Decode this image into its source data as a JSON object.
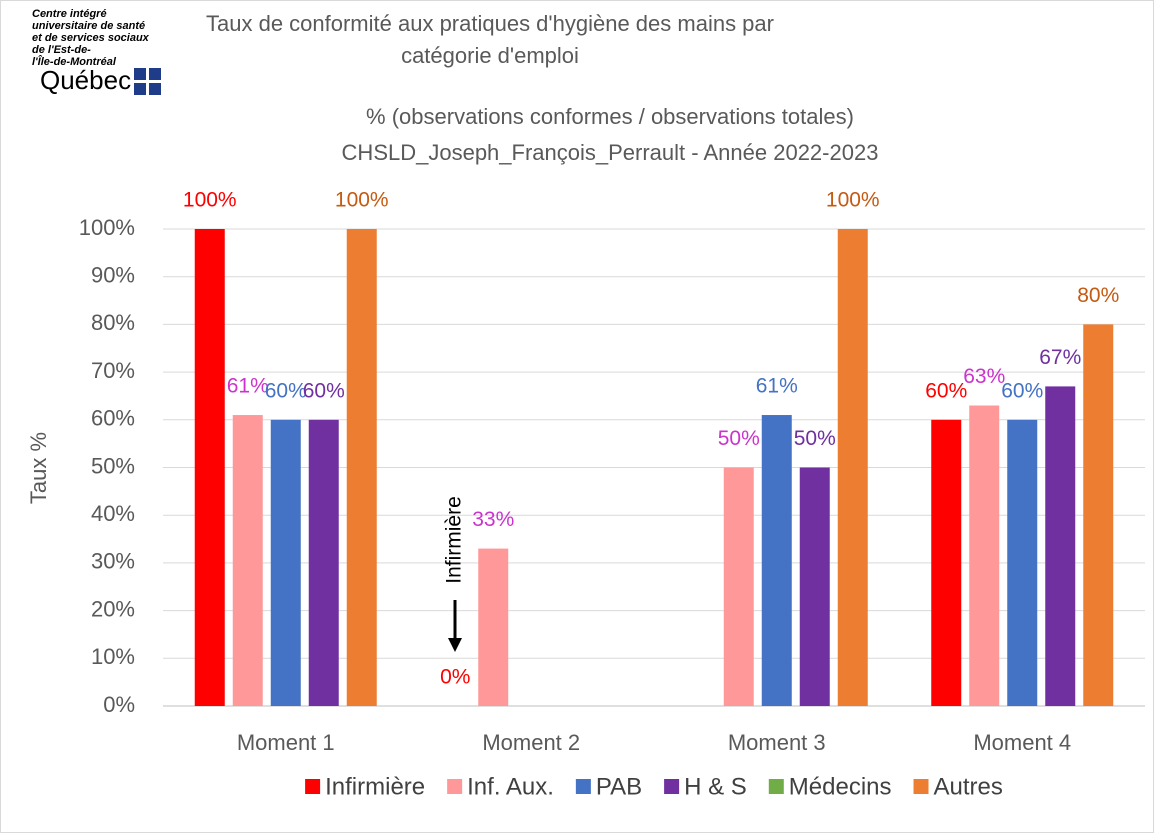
{
  "logo": {
    "lines": [
      "Centre intégré",
      "universitaire de santé",
      "et de services sociaux",
      "de l'Est-de-",
      "l'Île-de-Montréal"
    ],
    "brand": "Québec"
  },
  "chart_data": {
    "type": "bar",
    "title": "Taux de conformité aux pratiques d'hygiène des mains par catégorie d'emploi",
    "subtitle": [
      "% (observations conformes / observations totales)",
      "CHSLD_Joseph_François_Perrault - Année 2022-2023"
    ],
    "y_label": "Taux %",
    "annotation": "Infirmière",
    "categories": [
      "Moment 1",
      "Moment 2",
      "Moment 3",
      "Moment 4"
    ],
    "series": [
      {
        "name": "Infirmière",
        "color": "#ff0000",
        "label_color": "#ff0000",
        "values": [
          100,
          0,
          null,
          60
        ],
        "value_labels": [
          "100%",
          "0%",
          null,
          "60%"
        ]
      },
      {
        "name": "Inf. Aux.",
        "color": "#ff9999",
        "label_color": "#cc33cc",
        "values": [
          61,
          33,
          50,
          63
        ],
        "value_labels": [
          "61%",
          "33%",
          "50%",
          "63%"
        ]
      },
      {
        "name": "PAB",
        "color": "#4472c4",
        "label_color": "#4472c4",
        "values": [
          60,
          null,
          61,
          60
        ],
        "value_labels": [
          "60%",
          null,
          "61%",
          "60%"
        ]
      },
      {
        "name": "H & S",
        "color": "#7030a0",
        "label_color": "#7030a0",
        "values": [
          60,
          null,
          50,
          67
        ],
        "value_labels": [
          "60%",
          null,
          "50%",
          "67%"
        ]
      },
      {
        "name": "Médecins",
        "color": "#70ad47",
        "label_color": "#70ad47",
        "values": [
          null,
          null,
          null,
          null
        ]
      },
      {
        "name": "Autres",
        "color": "#ed7d31",
        "label_color": "#c55a11",
        "values": [
          100,
          null,
          100,
          80
        ],
        "value_labels": [
          "100%",
          null,
          "100%",
          "80%"
        ]
      }
    ],
    "ylim": [
      0,
      100
    ],
    "yticks": [
      {
        "value": 0,
        "label": "0%"
      },
      {
        "value": 10,
        "label": "10%"
      },
      {
        "value": 20,
        "label": "20%"
      },
      {
        "value": 30,
        "label": "30%"
      },
      {
        "value": 40,
        "label": "40%"
      },
      {
        "value": 50,
        "label": "50%"
      },
      {
        "value": 60,
        "label": "60%"
      },
      {
        "value": 70,
        "label": "70%"
      },
      {
        "value": 80,
        "label": "80%"
      },
      {
        "value": 90,
        "label": "90%"
      },
      {
        "value": 100,
        "label": "100%"
      }
    ],
    "grid": true,
    "legend": "bottom"
  }
}
